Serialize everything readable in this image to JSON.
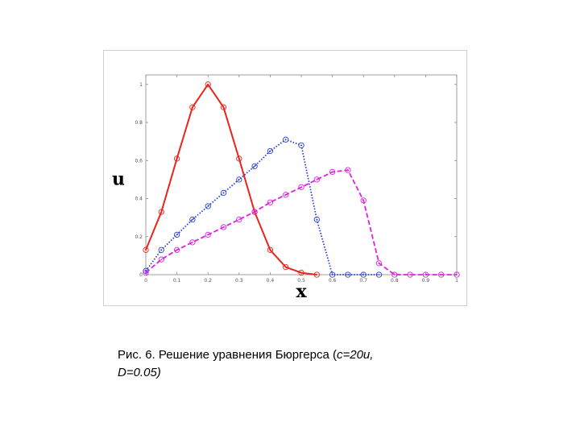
{
  "caption": {
    "prefix": "Рис. 6. Решение уравнения Бюргерса (",
    "params": "c=20u,",
    "params2": "D=0.05)"
  },
  "chart_data": {
    "type": "line",
    "xlabel": "x",
    "ylabel": "u",
    "xlim": [
      0,
      1
    ],
    "ylim": [
      0,
      1.05
    ],
    "xticks": [
      "0",
      "0.1",
      "0.2",
      "0.3",
      "0.4",
      "0.5",
      "0.6",
      "0.7",
      "0.8",
      "0.9",
      "1"
    ],
    "yticks": [
      "0",
      "0.2",
      "0.4",
      "0.6",
      "0.8",
      "1"
    ],
    "colors": {
      "red": "#e8241c",
      "blue": "#2a3fd6",
      "magenta": "#e020e0"
    },
    "series": [
      {
        "color": "#e8241c",
        "line_style": "solid",
        "x": [
          0,
          0.05,
          0.1,
          0.15,
          0.2,
          0.25,
          0.3,
          0.35,
          0.4,
          0.45,
          0.5,
          0.55
        ],
        "y": [
          0.13,
          0.33,
          0.61,
          0.88,
          1.0,
          0.88,
          0.61,
          0.33,
          0.13,
          0.04,
          0.01,
          0.0
        ]
      },
      {
        "color": "#2a3fd6",
        "line_style": "dotted",
        "x": [
          0,
          0.05,
          0.1,
          0.15,
          0.2,
          0.25,
          0.3,
          0.35,
          0.4,
          0.45,
          0.5,
          0.55,
          0.6,
          0.65,
          0.7,
          0.75
        ],
        "y": [
          0.02,
          0.13,
          0.21,
          0.29,
          0.36,
          0.43,
          0.5,
          0.57,
          0.65,
          0.71,
          0.68,
          0.29,
          0.0,
          0.0,
          0.0,
          0.0
        ]
      },
      {
        "color": "#e020e0",
        "line_style": "dashed",
        "x": [
          0,
          0.05,
          0.1,
          0.15,
          0.2,
          0.25,
          0.3,
          0.35,
          0.4,
          0.45,
          0.5,
          0.55,
          0.6,
          0.65,
          0.7,
          0.75,
          0.8,
          0.85,
          0.9,
          0.95,
          1
        ],
        "y": [
          0.01,
          0.08,
          0.13,
          0.17,
          0.21,
          0.25,
          0.29,
          0.33,
          0.38,
          0.42,
          0.46,
          0.5,
          0.54,
          0.55,
          0.39,
          0.06,
          0.0,
          0.0,
          0.0,
          0.0,
          0.0
        ]
      }
    ]
  }
}
